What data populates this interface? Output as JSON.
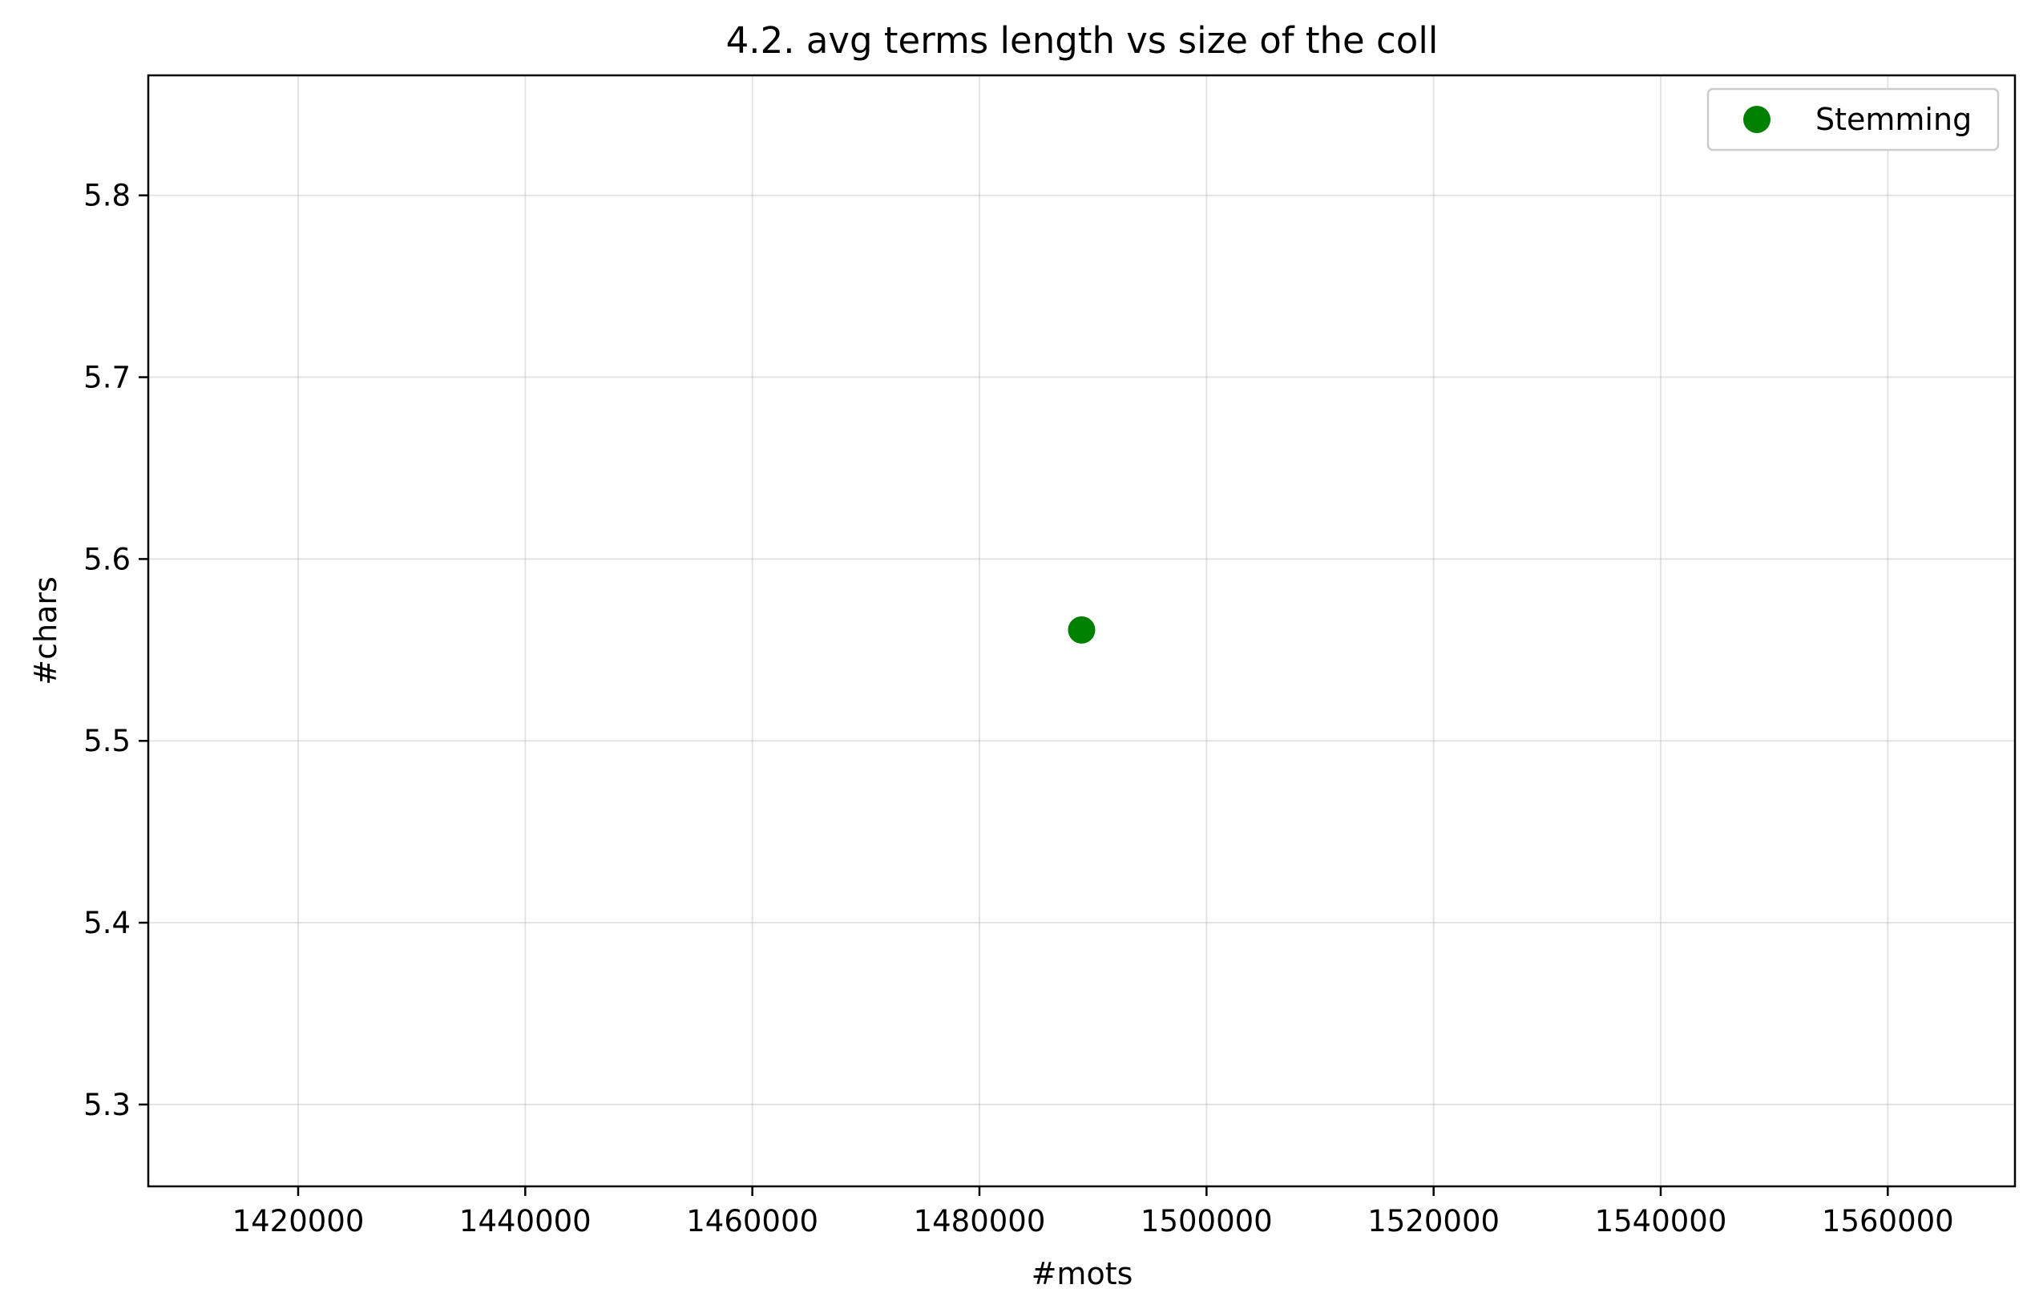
{
  "chart_data": {
    "type": "scatter",
    "title": "4.2.  avg terms length vs size of the coll",
    "xlabel": "#mots",
    "ylabel": "#chars",
    "xlim": [
      1406800,
      1571200
    ],
    "ylim": [
      5.255,
      5.866
    ],
    "x_ticks": [
      1420000,
      1440000,
      1460000,
      1480000,
      1500000,
      1520000,
      1540000,
      1560000
    ],
    "x_tick_labels": [
      "1420000",
      "1440000",
      "1460000",
      "1480000",
      "1500000",
      "1520000",
      "1540000",
      "1560000"
    ],
    "y_ticks": [
      5.3,
      5.4,
      5.5,
      5.6,
      5.7,
      5.8
    ],
    "y_tick_labels": [
      "5.3",
      "5.4",
      "5.5",
      "5.6",
      "5.7",
      "5.8"
    ],
    "grid": true,
    "legend_position": "top-right",
    "series": [
      {
        "name": "Stemming",
        "color": "#008000",
        "marker": "circle",
        "points": [
          {
            "x": 1489000,
            "y": 5.561
          }
        ]
      }
    ]
  }
}
